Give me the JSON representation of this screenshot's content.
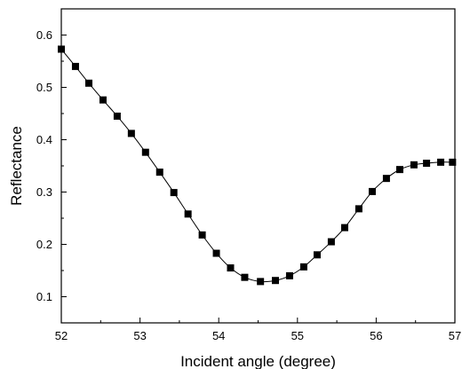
{
  "chart_data": {
    "type": "line",
    "title": "",
    "xlabel": "Incident angle (degree)",
    "ylabel": "Reflectance",
    "xlim": [
      52,
      57
    ],
    "ylim": [
      0.05,
      0.65
    ],
    "x_ticks": [
      52,
      53,
      54,
      55,
      56,
      57
    ],
    "x_tick_labels": [
      "52",
      "53",
      "54",
      "55",
      "56",
      "57"
    ],
    "y_ticks": [
      0.1,
      0.2,
      0.3,
      0.4,
      0.5,
      0.6
    ],
    "y_tick_labels": [
      "0.1",
      "0.2",
      "0.3",
      "0.4",
      "0.5",
      "0.6"
    ],
    "grid": false,
    "legend": false,
    "marker": "square",
    "line_color": "#000000",
    "marker_color": "#000000",
    "series": [
      {
        "x": [
          52.0,
          52.18,
          52.35,
          52.53,
          52.71,
          52.89,
          53.07,
          53.25,
          53.43,
          53.61,
          53.79,
          53.97,
          54.15,
          54.33,
          54.53,
          54.72,
          54.9,
          55.08,
          55.25,
          55.43,
          55.6,
          55.78,
          55.95,
          56.13,
          56.3,
          56.48,
          56.64,
          56.82,
          56.97
        ],
        "y": [
          0.573,
          0.54,
          0.508,
          0.476,
          0.445,
          0.412,
          0.376,
          0.338,
          0.299,
          0.258,
          0.218,
          0.183,
          0.155,
          0.137,
          0.129,
          0.131,
          0.14,
          0.157,
          0.18,
          0.205,
          0.232,
          0.268,
          0.301,
          0.326,
          0.343,
          0.352,
          0.355,
          0.357,
          0.357
        ]
      }
    ]
  }
}
